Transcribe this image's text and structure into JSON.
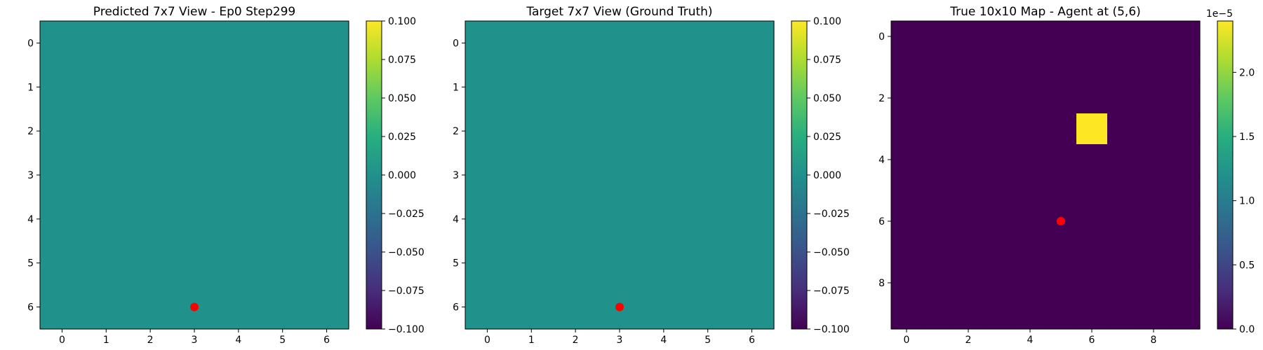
{
  "chart_data": [
    {
      "type": "heatmap",
      "title": "Predicted 7x7 View - Ep0 Step299",
      "rows": 7,
      "cols": 7,
      "xticks": [
        0,
        1,
        2,
        3,
        4,
        5,
        6
      ],
      "yticks": [
        0,
        1,
        2,
        3,
        4,
        5,
        6
      ],
      "values": [
        [
          0,
          0,
          0,
          0,
          0,
          0,
          0
        ],
        [
          0,
          0,
          0,
          0,
          0,
          0,
          0
        ],
        [
          0,
          0,
          0,
          0,
          0,
          0,
          0
        ],
        [
          0,
          0,
          0,
          0,
          0,
          0,
          0
        ],
        [
          0,
          0,
          0,
          0,
          0,
          0,
          0
        ],
        [
          0,
          0,
          0,
          0,
          0,
          0,
          0
        ],
        [
          0,
          0,
          0,
          0,
          0,
          0,
          0
        ]
      ],
      "vmin": -0.1,
      "vmax": 0.1,
      "colormap": "viridis",
      "colorbar_ticks": [
        -0.1,
        -0.075,
        -0.05,
        -0.025,
        0.0,
        0.025,
        0.05,
        0.075,
        0.1
      ],
      "colorbar_tick_labels": [
        "−0.100",
        "−0.075",
        "−0.050",
        "−0.025",
        "0.000",
        "0.025",
        "0.050",
        "0.075",
        "0.100"
      ],
      "colorbar_offset_label": "",
      "marker": {
        "x": 3,
        "y": 6,
        "color": "#ff0000"
      }
    },
    {
      "type": "heatmap",
      "title": "Target 7x7 View (Ground Truth)",
      "rows": 7,
      "cols": 7,
      "xticks": [
        0,
        1,
        2,
        3,
        4,
        5,
        6
      ],
      "yticks": [
        0,
        1,
        2,
        3,
        4,
        5,
        6
      ],
      "values": [
        [
          0,
          0,
          0,
          0,
          0,
          0,
          0
        ],
        [
          0,
          0,
          0,
          0,
          0,
          0,
          0
        ],
        [
          0,
          0,
          0,
          0,
          0,
          0,
          0
        ],
        [
          0,
          0,
          0,
          0,
          0,
          0,
          0
        ],
        [
          0,
          0,
          0,
          0,
          0,
          0,
          0
        ],
        [
          0,
          0,
          0,
          0,
          0,
          0,
          0
        ],
        [
          0,
          0,
          0,
          0,
          0,
          0,
          0
        ]
      ],
      "vmin": -0.1,
      "vmax": 0.1,
      "colormap": "viridis",
      "colorbar_ticks": [
        -0.1,
        -0.075,
        -0.05,
        -0.025,
        0.0,
        0.025,
        0.05,
        0.075,
        0.1
      ],
      "colorbar_tick_labels": [
        "−0.100",
        "−0.075",
        "−0.050",
        "−0.025",
        "0.000",
        "0.025",
        "0.050",
        "0.075",
        "0.100"
      ],
      "colorbar_offset_label": "",
      "marker": {
        "x": 3,
        "y": 6,
        "color": "#ff0000"
      }
    },
    {
      "type": "heatmap",
      "title": "True 10x10 Map - Agent at (5,6)",
      "rows": 10,
      "cols": 10,
      "xticks": [
        0,
        2,
        4,
        6,
        8
      ],
      "yticks": [
        0,
        2,
        4,
        6,
        8
      ],
      "values": [
        [
          0,
          0,
          0,
          0,
          0,
          0,
          0,
          0,
          0,
          0
        ],
        [
          0,
          0,
          0,
          0,
          0,
          0,
          0,
          0,
          0,
          0
        ],
        [
          0,
          0,
          0,
          0,
          0,
          0,
          0,
          0,
          0,
          0
        ],
        [
          0,
          0,
          0,
          0,
          0,
          0,
          2.4e-05,
          0,
          0,
          0
        ],
        [
          0,
          0,
          0,
          0,
          0,
          0,
          0,
          0,
          0,
          0
        ],
        [
          0,
          0,
          0,
          0,
          0,
          0,
          0,
          0,
          0,
          0
        ],
        [
          0,
          0,
          0,
          0,
          0,
          0,
          0,
          0,
          0,
          0
        ],
        [
          0,
          0,
          0,
          0,
          0,
          0,
          0,
          0,
          0,
          0
        ],
        [
          0,
          0,
          0,
          0,
          0,
          0,
          0,
          0,
          0,
          0
        ],
        [
          0,
          0,
          0,
          0,
          0,
          0,
          0,
          0,
          0,
          0
        ]
      ],
      "vmin": 0,
      "vmax": 2.4e-05,
      "colormap": "viridis",
      "colorbar_ticks": [
        0,
        5e-06,
        1e-05,
        1.5e-05,
        2e-05
      ],
      "colorbar_tick_labels": [
        "0.0",
        "0.5",
        "1.0",
        "1.5",
        "2.0"
      ],
      "colorbar_offset_label": "1e−5",
      "marker": {
        "x": 5,
        "y": 6,
        "color": "#ff0000"
      }
    }
  ]
}
